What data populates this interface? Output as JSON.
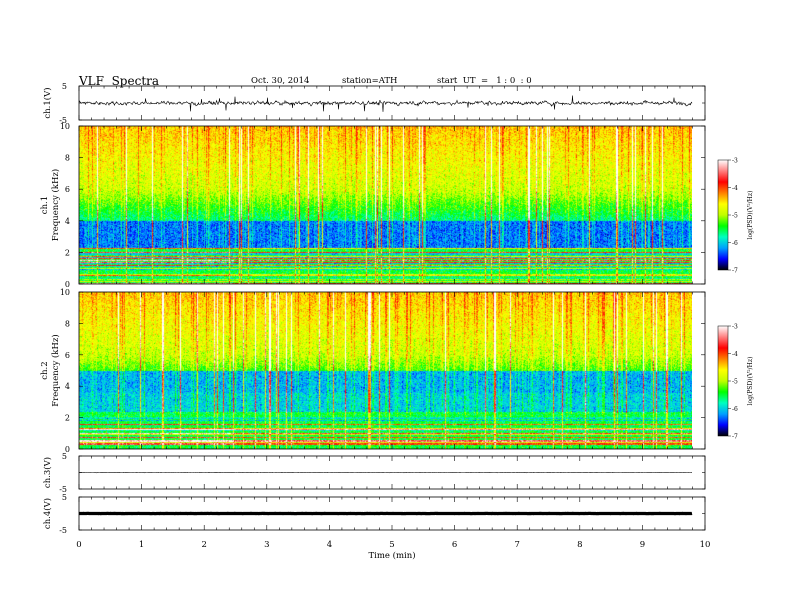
{
  "header": {
    "title": "VLF  Spectra",
    "date": "Oct. 30, 2014",
    "station": "station=ATH",
    "start": "start  UT  =   1 : 0  : 0"
  },
  "colors": {
    "colormap": [
      "#000000",
      "#0000ff",
      "#00a0ff",
      "#00ffc0",
      "#00ff00",
      "#c0ff00",
      "#ffff00",
      "#ff8000",
      "#ff0000",
      "#ff8080",
      "#ffffff"
    ]
  },
  "chart_data": [
    {
      "type": "line",
      "ylabel": "ch.1(V)",
      "ylim": [
        -5,
        5
      ],
      "yticks": [
        "5",
        "-5"
      ],
      "xlim": [
        0,
        10
      ],
      "series": [
        {
          "values_summary": "noisy trace oscillating about ~0 V between roughly -1 and +1 V"
        }
      ]
    },
    {
      "type": "heatmap",
      "channel_label": "ch.1",
      "ylabel": "Frequency  (kHz)",
      "ylim": [
        0,
        10
      ],
      "yticks": [
        "0",
        "2",
        "4",
        "6",
        "8",
        "10"
      ],
      "xlim": [
        0,
        10
      ],
      "data_end_min": 9.8,
      "colorbar": {
        "label": "log(PSD)(V²/Hz)",
        "range": [
          -7,
          -3
        ],
        "ticks": [
          "-3",
          "-4",
          "-5",
          "-6",
          "-7"
        ]
      }
    },
    {
      "type": "heatmap",
      "channel_label": "ch.2",
      "ylabel": "Frequency  (kHz)",
      "ylim": [
        0,
        10
      ],
      "yticks": [
        "0",
        "2",
        "4",
        "6",
        "8",
        "10"
      ],
      "xlim": [
        0,
        10
      ],
      "data_end_min": 9.8,
      "colorbar": {
        "label": "log(PSD)(V²/Hz)",
        "range": [
          -7,
          -3
        ],
        "ticks": [
          "-3",
          "-4",
          "-5",
          "-6",
          "-7"
        ]
      }
    },
    {
      "type": "line",
      "ylabel": "ch.3(V)",
      "ylim": [
        -5,
        5
      ],
      "yticks": [
        "5",
        "-5"
      ],
      "xlim": [
        0,
        10
      ],
      "series": [
        {
          "values_summary": "flat trace near 0 V"
        }
      ]
    },
    {
      "type": "line",
      "ylabel": "ch.4(V)",
      "ylim": [
        -5,
        5
      ],
      "yticks": [
        "5",
        "-5"
      ],
      "xlim": [
        0,
        10
      ],
      "xlabel": "Time  (min)",
      "xticks": [
        "0",
        "1",
        "2",
        "3",
        "4",
        "5",
        "6",
        "7",
        "8",
        "9",
        "10"
      ],
      "series": [
        {
          "values_summary": "thick flat trace near 0 V"
        }
      ]
    }
  ]
}
